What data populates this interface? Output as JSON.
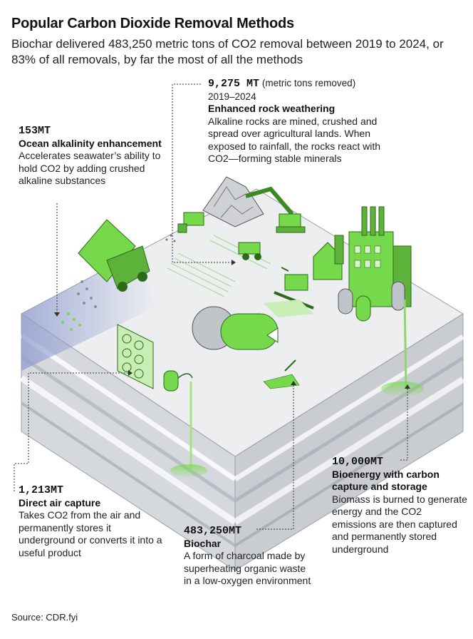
{
  "title": "Popular Carbon Dioxide Removal Methods",
  "subtitle": "Biochar delivered 483,250 metric tons of CO2 removal between 2019 to 2024, or 83% of all removals, by far the most of all the methods",
  "colors": {
    "accent_green": "#76d94b",
    "dark_green": "#3c8a22",
    "ground": "#e9ecef",
    "soil": "#cfd3d8"
  },
  "methods": [
    {
      "id": "enhanced-rock-weathering",
      "value": "9,275 MT",
      "unit_note": "(metric tons removed)",
      "years": "2019–2024",
      "name": "Enhanced rock weathering",
      "description": "Alkaline rocks are mined, crushed and spread over agricultural lands. When exposed to rainfall, the rocks react with CO2—forming stable minerals"
    },
    {
      "id": "ocean-alkalinity-enhancement",
      "value": "153MT",
      "name": "Ocean alkalinity enhancement",
      "description": "Accelerates seawater’s ability to hold CO2 by adding crushed alkaline substances"
    },
    {
      "id": "direct-air-capture",
      "value": "1,213MT",
      "name": "Direct air capture",
      "description": "Takes CO2 from the air and permanently stores it underground or converts it into a useful product"
    },
    {
      "id": "biochar",
      "value": "483,250MT",
      "name": "Biochar",
      "description": "A form of charcoal made by superheating organic waste in a low-oxygen environment"
    },
    {
      "id": "bioenergy-ccs",
      "value": "10,000MT",
      "name": "Bioenergy with carbon capture and storage",
      "description": "Biomass is burned to generate energy and the CO2 emissions are then captured and permanently stored underground"
    }
  ],
  "source": "Source: CDR.fyi"
}
